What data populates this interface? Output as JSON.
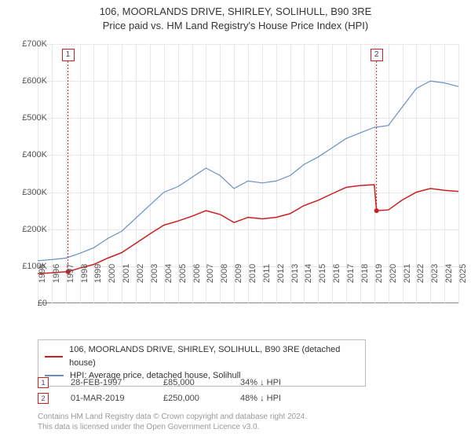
{
  "title_line1": "106, MOORLANDS DRIVE, SHIRLEY, SOLIHULL, B90 3RE",
  "title_line2": "Price paid vs. HM Land Registry's House Price Index (HPI)",
  "chart": {
    "type": "line",
    "background_color": "#ffffff",
    "grid_color": "#e8e8e8",
    "axis_color": "#888888",
    "ylim": [
      0,
      700000
    ],
    "ytick_step": 100000,
    "ytick_labels": [
      "£0",
      "£100K",
      "£200K",
      "£300K",
      "£400K",
      "£500K",
      "£600K",
      "£700K"
    ],
    "xlim": [
      1995,
      2025
    ],
    "xticks": [
      1995,
      1996,
      1997,
      1998,
      1999,
      2000,
      2001,
      2002,
      2003,
      2004,
      2005,
      2006,
      2007,
      2008,
      2009,
      2010,
      2011,
      2012,
      2013,
      2014,
      2015,
      2016,
      2017,
      2018,
      2019,
      2020,
      2021,
      2022,
      2023,
      2024,
      2025
    ],
    "series": [
      {
        "name": "hpi",
        "color": "#6a8fc7",
        "line_width": 1.2,
        "points": [
          [
            1995,
            115000
          ],
          [
            1996,
            118000
          ],
          [
            1997,
            122000
          ],
          [
            1998,
            135000
          ],
          [
            1999,
            150000
          ],
          [
            2000,
            175000
          ],
          [
            2001,
            195000
          ],
          [
            2002,
            230000
          ],
          [
            2003,
            265000
          ],
          [
            2004,
            300000
          ],
          [
            2005,
            315000
          ],
          [
            2006,
            340000
          ],
          [
            2007,
            365000
          ],
          [
            2008,
            345000
          ],
          [
            2009,
            310000
          ],
          [
            2010,
            330000
          ],
          [
            2011,
            325000
          ],
          [
            2012,
            330000
          ],
          [
            2013,
            345000
          ],
          [
            2014,
            375000
          ],
          [
            2015,
            395000
          ],
          [
            2016,
            420000
          ],
          [
            2017,
            445000
          ],
          [
            2018,
            460000
          ],
          [
            2019,
            475000
          ],
          [
            2020,
            480000
          ],
          [
            2021,
            530000
          ],
          [
            2022,
            580000
          ],
          [
            2023,
            600000
          ],
          [
            2024,
            595000
          ],
          [
            2025,
            585000
          ]
        ]
      },
      {
        "name": "property",
        "color": "#cc2020",
        "line_width": 1.5,
        "points": [
          [
            1995,
            80000
          ],
          [
            1996,
            82000
          ],
          [
            1997,
            85000
          ],
          [
            1997.16,
            85000
          ],
          [
            1998,
            95000
          ],
          [
            1999,
            105000
          ],
          [
            2000,
            122000
          ],
          [
            2001,
            137000
          ],
          [
            2002,
            162000
          ],
          [
            2003,
            187000
          ],
          [
            2004,
            211000
          ],
          [
            2005,
            222000
          ],
          [
            2006,
            235000
          ],
          [
            2007,
            250000
          ],
          [
            2008,
            240000
          ],
          [
            2009,
            218000
          ],
          [
            2010,
            232000
          ],
          [
            2011,
            228000
          ],
          [
            2012,
            232000
          ],
          [
            2013,
            242000
          ],
          [
            2014,
            264000
          ],
          [
            2015,
            278000
          ],
          [
            2016,
            296000
          ],
          [
            2017,
            313000
          ],
          [
            2018,
            318000
          ],
          [
            2019,
            320000
          ],
          [
            2019.16,
            250000
          ],
          [
            2020,
            252000
          ],
          [
            2021,
            279000
          ],
          [
            2022,
            300000
          ],
          [
            2023,
            310000
          ],
          [
            2024,
            305000
          ],
          [
            2025,
            302000
          ]
        ]
      }
    ],
    "markers": [
      {
        "num": "1",
        "x": 1997.16,
        "y": 85000,
        "color": "#cc2020"
      },
      {
        "num": "2",
        "x": 2019.16,
        "y": 250000,
        "color": "#cc2020"
      }
    ]
  },
  "legend": {
    "items": [
      {
        "color": "#cc2020",
        "label": "106, MOORLANDS DRIVE, SHIRLEY, SOLIHULL, B90 3RE (detached house)"
      },
      {
        "color": "#6a8fc7",
        "label": "HPI: Average price, detached house, Solihull"
      }
    ]
  },
  "sales": [
    {
      "num": "1",
      "color": "#cc2020",
      "date": "28-FEB-1997",
      "price": "£85,000",
      "pct": "34%",
      "arrow": "↓",
      "suffix": "HPI"
    },
    {
      "num": "2",
      "color": "#cc2020",
      "date": "01-MAR-2019",
      "price": "£250,000",
      "pct": "48%",
      "arrow": "↓",
      "suffix": "HPI"
    }
  ],
  "footer_line1": "Contains HM Land Registry data © Crown copyright and database right 2024.",
  "footer_line2": "This data is licensed under the Open Government Licence v3.0."
}
